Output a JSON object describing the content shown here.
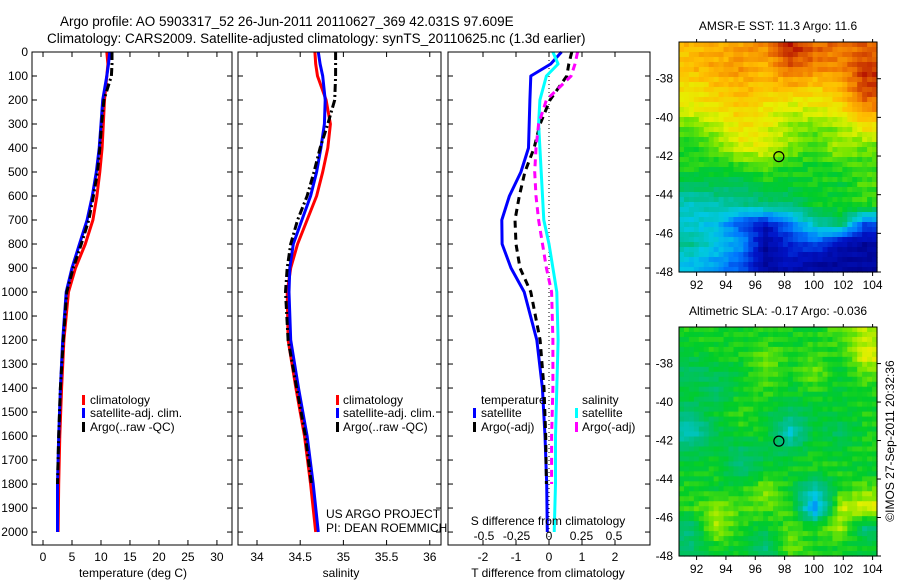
{
  "header": {
    "title_line1": "Argo profile: AO 5903317_52 26-Jun-2011 20110627_369 42.031S 97.609E",
    "title_line2": "Climatology: CARS2009. Satellite-adjusted climatology: synTS_20110625.nc (1.3d earlier)"
  },
  "credits": {
    "project": "US ARGO PROJECT",
    "pi": "PI: DEAN ROEMMICH",
    "timestamp": "©IMOS 27-Sep-2011 20:32:36"
  },
  "colors": {
    "climatology": "#ff0000",
    "satellite_t": "#0000ff",
    "argo": "#000000",
    "satellite_s": "#00ffff",
    "argo_s": "#ff00ff"
  },
  "chart_data": [
    {
      "type": "line",
      "id": "temperature",
      "xlabel": "temperature (deg C)",
      "xlim": [
        -1.9,
        32.6
      ],
      "xticks": [
        0,
        5,
        10,
        15,
        20,
        25,
        30
      ],
      "ylim": [
        0,
        2054
      ],
      "yticks": [
        0,
        100,
        200,
        300,
        400,
        500,
        600,
        700,
        800,
        900,
        1000,
        1100,
        1200,
        1300,
        1400,
        1500,
        1600,
        1700,
        1800,
        1900,
        2000
      ],
      "depth": [
        0,
        50,
        100,
        200,
        300,
        400,
        500,
        600,
        700,
        800,
        900,
        1000,
        1200,
        1400,
        1600,
        1800,
        2000
      ],
      "legend": [
        "climatology",
        "satellite-adj. clim.",
        "Argo(..raw -QC)"
      ],
      "series": [
        {
          "name": "climatology",
          "color": "#ff0000",
          "style": "solid",
          "values": [
            11.0,
            11.2,
            11.0,
            10.6,
            10.4,
            10.2,
            9.8,
            9.3,
            8.6,
            7.3,
            5.6,
            4.4,
            3.6,
            3.2,
            2.9,
            2.7,
            2.6
          ]
        },
        {
          "name": "satellite-adj. clim.",
          "color": "#0000ff",
          "style": "solid",
          "values": [
            11.5,
            11.3,
            11.0,
            10.3,
            10.0,
            9.7,
            9.2,
            8.5,
            7.6,
            6.3,
            5.0,
            4.0,
            3.4,
            3.0,
            2.7,
            2.5,
            2.5
          ]
        },
        {
          "name": "Argo(..raw -QC)",
          "color": "#000000",
          "style": "dashdot",
          "values": [
            11.9,
            11.9,
            11.8,
            10.5,
            10.1,
            9.8,
            9.4,
            8.7,
            7.9,
            6.6,
            5.2,
            4.1,
            3.5,
            3.0,
            2.7,
            2.5,
            null
          ]
        }
      ]
    },
    {
      "type": "line",
      "id": "salinity",
      "xlabel": "salinity",
      "xlim": [
        33.78,
        36.13
      ],
      "xticks": [
        34,
        34.5,
        35,
        35.5,
        36
      ],
      "ylim": [
        0,
        2054
      ],
      "depth": [
        0,
        50,
        100,
        200,
        300,
        400,
        500,
        600,
        700,
        800,
        900,
        1000,
        1200,
        1400,
        1600,
        1800,
        2000
      ],
      "legend": [
        "climatology",
        "satellite-adj. clim.",
        "Argo(..raw -QC)"
      ],
      "series": [
        {
          "name": "climatology",
          "color": "#ff0000",
          "style": "solid",
          "values": [
            34.67,
            34.68,
            34.7,
            34.8,
            34.85,
            34.82,
            34.76,
            34.69,
            34.58,
            34.47,
            34.39,
            34.35,
            34.36,
            34.45,
            34.55,
            34.62,
            34.68
          ]
        },
        {
          "name": "satellite-adj. clim.",
          "color": "#0000ff",
          "style": "solid",
          "values": [
            34.71,
            34.73,
            34.76,
            34.79,
            34.78,
            34.74,
            34.69,
            34.62,
            34.52,
            34.42,
            34.38,
            34.37,
            34.39,
            34.48,
            34.58,
            34.65,
            34.71
          ]
        },
        {
          "name": "Argo(..raw -QC)",
          "color": "#000000",
          "style": "dashdot",
          "values": [
            34.91,
            34.91,
            34.91,
            34.9,
            34.82,
            34.73,
            34.66,
            34.58,
            34.47,
            34.39,
            34.35,
            34.33,
            34.36,
            34.46,
            34.56,
            34.63,
            null
          ]
        }
      ]
    },
    {
      "type": "line",
      "id": "difference",
      "xlabel": "T difference from climatology",
      "x2label": "S difference from climatology",
      "xlim": [
        -3.06,
        3.06
      ],
      "xticks": [
        -2,
        -1,
        0,
        1,
        2
      ],
      "x2ticks": [
        -0.5,
        -0.25,
        0,
        0.25,
        0.5
      ],
      "x2_per_x": 0.254,
      "ylim": [
        0,
        2054
      ],
      "depth": [
        0,
        50,
        100,
        200,
        300,
        400,
        500,
        600,
        700,
        800,
        900,
        1000,
        1200,
        1400,
        1600,
        1800,
        2000
      ],
      "legend_t_title": "temperature",
      "legend_s_title": "salinity",
      "legend": [
        "satellite",
        "Argo(-adj)",
        "satellite",
        "Argo(-adj)"
      ],
      "series": [
        {
          "name": "temperature satellite",
          "axis": "T",
          "color": "#0000ff",
          "style": "solid",
          "values": [
            0.38,
            0.05,
            -0.55,
            -0.58,
            -0.6,
            -0.62,
            -0.85,
            -1.2,
            -1.43,
            -1.42,
            -1.15,
            -0.75,
            -0.37,
            -0.2,
            -0.12,
            -0.07,
            -0.05
          ]
        },
        {
          "name": "temperature Argo(-adj)",
          "axis": "T",
          "color": "#000000",
          "style": "dashed",
          "values": [
            0.69,
            0.6,
            0.54,
            0.03,
            -0.27,
            -0.45,
            -0.73,
            -0.9,
            -1.03,
            -1.0,
            -0.88,
            -0.55,
            -0.27,
            -0.15,
            -0.1,
            -0.08,
            null
          ]
        },
        {
          "name": "salinity satellite",
          "axis": "S",
          "color": "#00ffff",
          "style": "solid",
          "values": [
            0.03,
            0.07,
            -0.02,
            -0.07,
            -0.08,
            -0.07,
            -0.06,
            -0.05,
            -0.04,
            0.0,
            0.03,
            0.06,
            0.07,
            0.06,
            0.05,
            0.05,
            0.04
          ]
        },
        {
          "name": "salinity Argo(-adj)",
          "axis": "S",
          "color": "#ff00ff",
          "style": "dashed",
          "values": [
            0.22,
            0.2,
            0.17,
            -0.02,
            -0.08,
            -0.1,
            -0.11,
            -0.1,
            -0.08,
            -0.05,
            -0.02,
            0.02,
            0.03,
            0.03,
            0.02,
            0.02,
            null
          ]
        }
      ]
    },
    {
      "type": "heatmap",
      "id": "sst_map",
      "title": "AMSR-E SST: 11.3 Argo: 11.6",
      "xlim": [
        90.8,
        104.3
      ],
      "ylim": [
        -48,
        -36.1
      ],
      "xticks": [
        92,
        94,
        96,
        98,
        100,
        102,
        104
      ],
      "yticks": [
        -38,
        -40,
        -42,
        -44,
        -46,
        -48
      ],
      "marker": {
        "lon": 97.609,
        "lat": -42.031
      },
      "grid_note": "normalized colormap position, rows north to south, cols west to east",
      "grid": [
        [
          0.8,
          0.82,
          0.84,
          0.85,
          0.97,
          0.9,
          0.88,
          0.9
        ],
        [
          0.8,
          0.82,
          0.84,
          0.8,
          0.88,
          0.85,
          0.85,
          0.95
        ],
        [
          0.74,
          0.78,
          0.8,
          0.78,
          0.8,
          0.76,
          0.8,
          0.93
        ],
        [
          0.72,
          0.75,
          0.78,
          0.74,
          0.7,
          0.72,
          0.75,
          0.85
        ],
        [
          0.62,
          0.68,
          0.74,
          0.72,
          0.66,
          0.64,
          0.66,
          0.74
        ],
        [
          0.58,
          0.64,
          0.72,
          0.72,
          0.66,
          0.6,
          0.68,
          0.64
        ],
        [
          0.6,
          0.58,
          0.6,
          0.62,
          0.58,
          0.58,
          0.6,
          0.6
        ],
        [
          0.5,
          0.52,
          0.5,
          0.56,
          0.56,
          0.58,
          0.56,
          0.62
        ],
        [
          0.4,
          0.42,
          0.45,
          0.48,
          0.48,
          0.56,
          0.58,
          0.6
        ],
        [
          0.38,
          0.35,
          0.2,
          0.1,
          0.25,
          0.42,
          0.5,
          0.2
        ],
        [
          0.45,
          0.36,
          0.3,
          0.05,
          0.15,
          0.2,
          0.08,
          0.05
        ],
        [
          0.35,
          0.3,
          0.2,
          0.05,
          0.1,
          0.05,
          0.05,
          0.05
        ]
      ]
    },
    {
      "type": "heatmap",
      "id": "sla_map",
      "title": "Altimetric SLA: -0.17 Argo: -0.036",
      "xlim": [
        90.8,
        104.3
      ],
      "ylim": [
        -48,
        -36.1
      ],
      "xticks": [
        92,
        94,
        96,
        98,
        100,
        102,
        104
      ],
      "yticks": [
        -38,
        -40,
        -42,
        -44,
        -46,
        -48
      ],
      "marker": {
        "lon": 97.609,
        "lat": -42.031
      },
      "grid": [
        [
          0.58,
          0.58,
          0.58,
          0.58,
          0.58,
          0.58,
          0.62,
          0.68
        ],
        [
          0.55,
          0.58,
          0.58,
          0.64,
          0.58,
          0.6,
          0.58,
          0.72
        ],
        [
          0.5,
          0.52,
          0.55,
          0.62,
          0.58,
          0.64,
          0.55,
          0.62
        ],
        [
          0.56,
          0.5,
          0.58,
          0.6,
          0.56,
          0.58,
          0.56,
          0.58
        ],
        [
          0.48,
          0.56,
          0.6,
          0.55,
          0.5,
          0.55,
          0.56,
          0.58
        ],
        [
          0.4,
          0.52,
          0.58,
          0.58,
          0.38,
          0.55,
          0.5,
          0.58
        ],
        [
          0.52,
          0.56,
          0.5,
          0.52,
          0.52,
          0.58,
          0.56,
          0.58
        ],
        [
          0.56,
          0.58,
          0.48,
          0.56,
          0.58,
          0.58,
          0.58,
          0.56
        ],
        [
          0.58,
          0.56,
          0.58,
          0.66,
          0.56,
          0.4,
          0.58,
          0.64
        ],
        [
          0.6,
          0.66,
          0.62,
          0.62,
          0.6,
          0.28,
          0.68,
          0.72
        ],
        [
          0.48,
          0.68,
          0.58,
          0.55,
          0.62,
          0.58,
          0.68,
          0.48
        ],
        [
          0.5,
          0.58,
          0.56,
          0.48,
          0.64,
          0.58,
          0.58,
          0.56
        ]
      ]
    }
  ]
}
